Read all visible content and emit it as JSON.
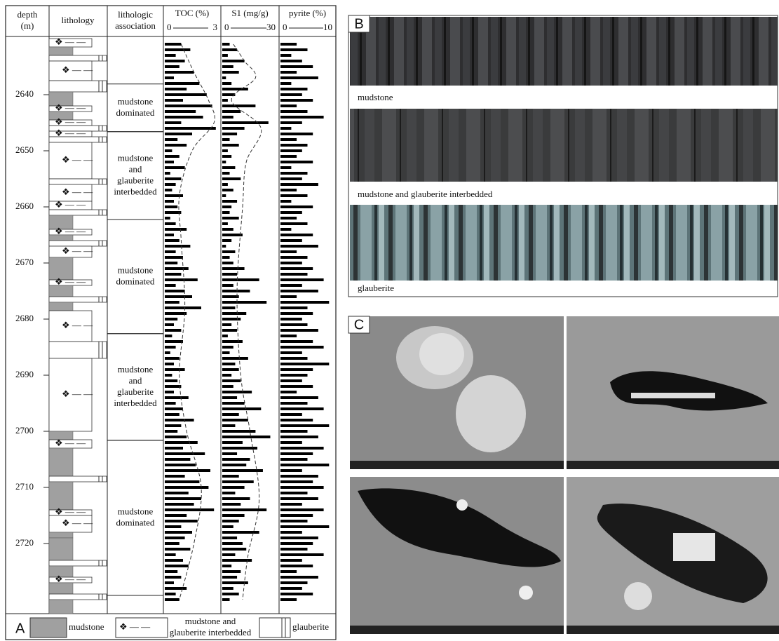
{
  "panel_a": {
    "label": "A",
    "headers": {
      "depth": [
        "depth",
        "(m)"
      ],
      "lithology": "lithology",
      "association": [
        "lithologic",
        "association"
      ]
    },
    "ylim": [
      2630,
      2732.5
    ],
    "yticks": [
      2640,
      2650,
      2660,
      2670,
      2680,
      2690,
      2700,
      2710,
      2720
    ],
    "lithology": [
      {
        "top": 2630,
        "bottom": 2631.5,
        "kind": "interbedded"
      },
      {
        "top": 2631.5,
        "bottom": 2633,
        "kind": "mudstone"
      },
      {
        "top": 2633,
        "bottom": 2634,
        "kind": "glauberite"
      },
      {
        "top": 2634,
        "bottom": 2637.5,
        "kind": "interbedded"
      },
      {
        "top": 2637.5,
        "bottom": 2639.5,
        "kind": "glauberite"
      },
      {
        "top": 2639.5,
        "bottom": 2642,
        "kind": "mudstone"
      },
      {
        "top": 2642,
        "bottom": 2643,
        "kind": "interbedded"
      },
      {
        "top": 2643,
        "bottom": 2644.5,
        "kind": "mudstone"
      },
      {
        "top": 2644.5,
        "bottom": 2645.5,
        "kind": "interbedded"
      },
      {
        "top": 2645.5,
        "bottom": 2646.5,
        "kind": "glauberite"
      },
      {
        "top": 2646.5,
        "bottom": 2647.5,
        "kind": "interbedded"
      },
      {
        "top": 2647.5,
        "bottom": 2648.5,
        "kind": "glauberite"
      },
      {
        "top": 2648.5,
        "bottom": 2655,
        "kind": "interbedded"
      },
      {
        "top": 2655,
        "bottom": 2656,
        "kind": "glauberite"
      },
      {
        "top": 2656,
        "bottom": 2659,
        "kind": "interbedded"
      },
      {
        "top": 2659,
        "bottom": 2660.5,
        "kind": "interbedded"
      },
      {
        "top": 2660.5,
        "bottom": 2661.5,
        "kind": "glauberite"
      },
      {
        "top": 2661.5,
        "bottom": 2664,
        "kind": "mudstone"
      },
      {
        "top": 2664,
        "bottom": 2665,
        "kind": "interbedded"
      },
      {
        "top": 2665,
        "bottom": 2666,
        "kind": "mudstone"
      },
      {
        "top": 2666,
        "bottom": 2667,
        "kind": "glauberite"
      },
      {
        "top": 2667,
        "bottom": 2669,
        "kind": "interbedded"
      },
      {
        "top": 2669,
        "bottom": 2673,
        "kind": "mudstone"
      },
      {
        "top": 2673,
        "bottom": 2674,
        "kind": "interbedded"
      },
      {
        "top": 2674,
        "bottom": 2676,
        "kind": "mudstone"
      },
      {
        "top": 2676,
        "bottom": 2677,
        "kind": "glauberite"
      },
      {
        "top": 2677,
        "bottom": 2678.5,
        "kind": "mudstone"
      },
      {
        "top": 2678.5,
        "bottom": 2684,
        "kind": "interbedded"
      },
      {
        "top": 2684,
        "bottom": 2687,
        "kind": "glauberite"
      },
      {
        "top": 2687,
        "bottom": 2700,
        "kind": "interbedded"
      },
      {
        "top": 2700,
        "bottom": 2701.5,
        "kind": "mudstone"
      },
      {
        "top": 2701.5,
        "bottom": 2703,
        "kind": "interbedded"
      },
      {
        "top": 2703,
        "bottom": 2708,
        "kind": "mudstone"
      },
      {
        "top": 2708,
        "bottom": 2709,
        "kind": "glauberite"
      },
      {
        "top": 2709,
        "bottom": 2714,
        "kind": "mudstone"
      },
      {
        "top": 2714,
        "bottom": 2715,
        "kind": "interbedded"
      },
      {
        "top": 2715,
        "bottom": 2718,
        "kind": "interbedded"
      },
      {
        "top": 2718,
        "bottom": 2719,
        "kind": "mudstone"
      },
      {
        "top": 2719,
        "bottom": 2723,
        "kind": "mudstone"
      },
      {
        "top": 2723,
        "bottom": 2724,
        "kind": "glauberite"
      },
      {
        "top": 2724,
        "bottom": 2726,
        "kind": "mudstone"
      },
      {
        "top": 2726,
        "bottom": 2727,
        "kind": "interbedded"
      },
      {
        "top": 2727,
        "bottom": 2729,
        "kind": "mudstone"
      },
      {
        "top": 2729,
        "bottom": 2730,
        "kind": "glauberite"
      },
      {
        "top": 2730,
        "bottom": 2732.5,
        "kind": "mudstone"
      }
    ],
    "associations": [
      {
        "top": 2638.1,
        "bottom": 2646.6,
        "label": [
          "mudstone",
          "dominated"
        ]
      },
      {
        "top": 2646.6,
        "bottom": 2662.25,
        "label": [
          "mudstone",
          "and",
          "glauberite",
          "interbedded"
        ]
      },
      {
        "top": 2662.25,
        "bottom": 2682.6,
        "label": [
          "mudstone",
          "dominated"
        ]
      },
      {
        "top": 2682.6,
        "bottom": 2701.6,
        "label": [
          "mudstone",
          "and",
          "glauberite",
          "interbedded"
        ]
      },
      {
        "top": 2701.6,
        "bottom": 2729.25,
        "label": [
          "mudstone",
          "dominated"
        ]
      }
    ],
    "depths": [
      2631,
      2632,
      2633,
      2634,
      2635,
      2636,
      2637,
      2638,
      2639,
      2640,
      2641,
      2642,
      2643,
      2644,
      2645,
      2646,
      2647,
      2648,
      2649,
      2650,
      2651,
      2652,
      2653,
      2654,
      2655,
      2656,
      2657,
      2658,
      2659,
      2660,
      2661,
      2662,
      2663,
      2664,
      2665,
      2666,
      2667,
      2668,
      2669,
      2670,
      2671,
      2672,
      2673,
      2674,
      2675,
      2676,
      2677,
      2678,
      2679,
      2680,
      2681,
      2682,
      2683,
      2684,
      2685,
      2686,
      2687,
      2688,
      2689,
      2690,
      2691,
      2692,
      2693,
      2694,
      2695,
      2696,
      2697,
      2698,
      2699,
      2700,
      2701,
      2702,
      2703,
      2704,
      2705,
      2706,
      2707,
      2708,
      2709,
      2710,
      2711,
      2712,
      2713,
      2714,
      2715,
      2716,
      2717,
      2718,
      2719,
      2720,
      2721,
      2722,
      2723,
      2724,
      2725,
      2726,
      2727,
      2728,
      2729,
      2730
    ],
    "tracks": [
      {
        "title": "TOC (%)",
        "xlim": [
          0,
          3
        ],
        "values": [
          0.9,
          1.4,
          0.6,
          1.1,
          0.8,
          1.6,
          0.5,
          1.9,
          1.2,
          2.3,
          1.0,
          2.6,
          1.7,
          2.1,
          0.9,
          2.8,
          1.5,
          0.7,
          1.2,
          0.4,
          0.8,
          0.5,
          1.1,
          0.3,
          0.9,
          0.6,
          0.4,
          1.0,
          0.5,
          0.7,
          0.9,
          0.3,
          0.6,
          1.2,
          0.5,
          0.8,
          1.4,
          0.6,
          1.0,
          0.7,
          1.3,
          0.9,
          1.8,
          0.6,
          1.1,
          1.5,
          0.8,
          2.0,
          1.2,
          0.7,
          0.5,
          0.9,
          0.4,
          1.0,
          0.6,
          0.3,
          0.8,
          0.5,
          1.1,
          0.4,
          0.7,
          0.9,
          0.5,
          1.3,
          0.6,
          1.0,
          0.8,
          1.6,
          0.9,
          0.7,
          1.2,
          1.8,
          1.0,
          2.2,
          1.4,
          1.7,
          2.5,
          1.1,
          1.9,
          2.4,
          1.3,
          2.0,
          1.6,
          2.7,
          1.2,
          1.8,
          0.9,
          1.5,
          1.1,
          0.8,
          1.4,
          0.6,
          1.0,
          1.3,
          0.7,
          0.9,
          0.5,
          1.2,
          0.6,
          0.8
        ],
        "trend": {
          "depths": [
            2631,
            2636,
            2641,
            2645,
            2650,
            2658,
            2666,
            2678,
            2690,
            2700,
            2710,
            2720,
            2730
          ],
          "values": [
            0.9,
            1.6,
            2.4,
            2.7,
            1.5,
            0.8,
            0.9,
            1.1,
            0.8,
            1.2,
            2.0,
            1.6,
            0.8
          ]
        }
      },
      {
        "title": "S1 (mg/g)",
        "xlim": [
          0,
          30
        ],
        "values": [
          4,
          8,
          3,
          12,
          6,
          9,
          2,
          5,
          14,
          7,
          3,
          18,
          10,
          6,
          25,
          12,
          8,
          4,
          9,
          3,
          5,
          2,
          7,
          4,
          10,
          3,
          6,
          2,
          8,
          5,
          4,
          9,
          3,
          6,
          11,
          5,
          2,
          7,
          4,
          6,
          12,
          8,
          20,
          6,
          15,
          9,
          24,
          7,
          13,
          10,
          5,
          8,
          3,
          11,
          6,
          4,
          14,
          7,
          9,
          5,
          10,
          6,
          16,
          8,
          12,
          21,
          9,
          14,
          7,
          18,
          26,
          11,
          19,
          8,
          15,
          13,
          22,
          9,
          17,
          12,
          7,
          15,
          10,
          24,
          12,
          9,
          6,
          20,
          8,
          11,
          13,
          7,
          16,
          5,
          10,
          8,
          14,
          6,
          9,
          4
        ],
        "trend": {
          "depths": [
            2631,
            2634,
            2637,
            2641,
            2646,
            2652,
            2660,
            2675,
            2690,
            2700,
            2712,
            2722,
            2730
          ],
          "values": [
            6,
            12,
            18,
            5,
            21,
            13,
            11,
            8,
            10,
            15,
            20,
            14,
            11
          ]
        }
      },
      {
        "title": "pyrite (%)",
        "xlim": [
          0,
          10
        ],
        "values": [
          3,
          5,
          2,
          4,
          6,
          3,
          7,
          2,
          5,
          4,
          6,
          3,
          5,
          8,
          4,
          2,
          6,
          3,
          5,
          4,
          3,
          6,
          2,
          5,
          4,
          7,
          3,
          5,
          2,
          6,
          4,
          3,
          5,
          2,
          6,
          4,
          7,
          3,
          5,
          4,
          6,
          5,
          8,
          4,
          7,
          3,
          9,
          5,
          6,
          4,
          5,
          7,
          3,
          6,
          8,
          4,
          5,
          9,
          6,
          5,
          4,
          6,
          3,
          7,
          5,
          8,
          4,
          6,
          9,
          5,
          7,
          4,
          8,
          6,
          5,
          9,
          4,
          7,
          6,
          8,
          5,
          7,
          4,
          8,
          6,
          5,
          9,
          4,
          7,
          6,
          5,
          8,
          4,
          6,
          3,
          7,
          5,
          4,
          6,
          3
        ]
      }
    ],
    "legend": [
      {
        "kind": "mudstone",
        "label": [
          "mudstone"
        ]
      },
      {
        "kind": "interbedded",
        "label": [
          "mudstone and",
          "glauberite interbedded"
        ]
      },
      {
        "kind": "glauberite",
        "label": [
          "glauberite"
        ]
      }
    ]
  },
  "panel_b": {
    "label": "B",
    "captions": [
      "mudstone",
      "mudstone and glauberite interbedded",
      "glauberite"
    ]
  },
  "panel_c": {
    "label": "C"
  }
}
